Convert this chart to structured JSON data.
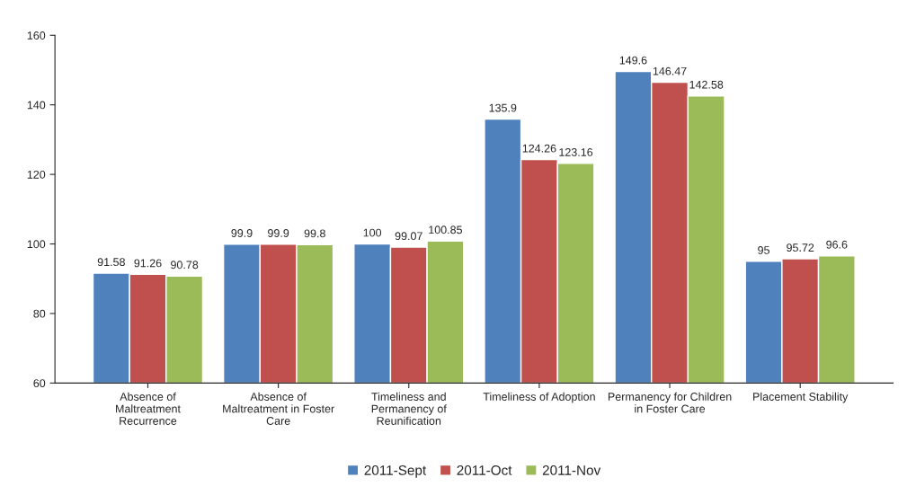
{
  "chart_data": {
    "type": "bar",
    "categories": [
      "Absence of\nMaltreatment\nRecurrence",
      "Absence of\nMaltreatment in Foster\nCare",
      "Timeliness and\nPermanency of\nReunification",
      "Timeliness of Adoption",
      "Permanency for Children\nin Foster Care",
      "Placement Stability"
    ],
    "series": [
      {
        "name": "2011-Sept",
        "color": "#4f81bd",
        "values": [
          91.58,
          99.9,
          100,
          135.9,
          149.6,
          95
        ]
      },
      {
        "name": "2011-Oct",
        "color": "#c0504d",
        "values": [
          91.26,
          99.9,
          99.07,
          124.26,
          146.47,
          95.72
        ]
      },
      {
        "name": "2011-Nov",
        "color": "#9bbb59",
        "values": [
          90.78,
          99.8,
          100.85,
          123.16,
          142.58,
          96.6
        ]
      }
    ],
    "ylim": [
      60,
      160
    ],
    "yticks": [
      60,
      80,
      100,
      120,
      140,
      160
    ],
    "data_labels": true,
    "grid": false,
    "legend": "bottom"
  }
}
